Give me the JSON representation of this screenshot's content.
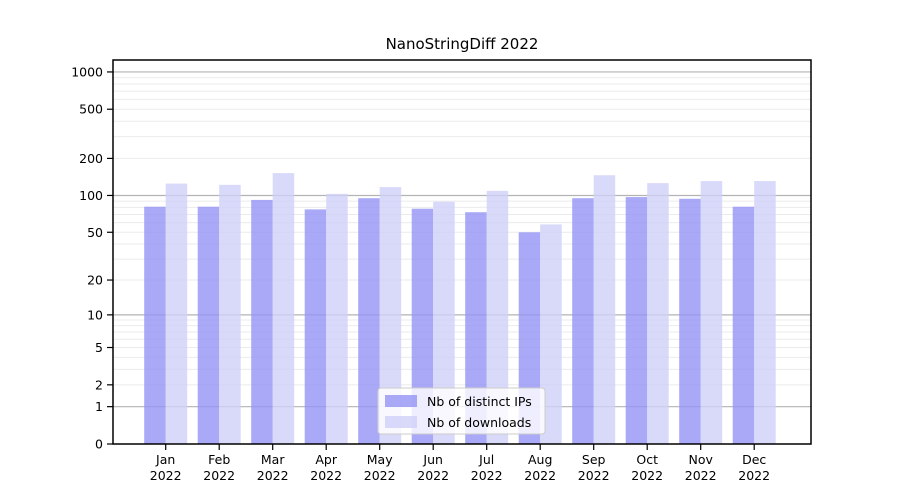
{
  "title": "NanoStringDiff 2022",
  "chart_data": {
    "type": "bar",
    "title": "NanoStringDiff 2022",
    "categories": [
      "Jan",
      "Feb",
      "Mar",
      "Apr",
      "May",
      "Jun",
      "Jul",
      "Aug",
      "Sep",
      "Oct",
      "Nov",
      "Dec"
    ],
    "category_year": "2022",
    "series": [
      {
        "name": "Nb of distinct IPs",
        "color": "#9494f5",
        "values": [
          81,
          81,
          92,
          77,
          95,
          78,
          73,
          50,
          95,
          97,
          94,
          81
        ]
      },
      {
        "name": "Nb of downloads",
        "color": "#d0d0f9",
        "values": [
          125,
          122,
          152,
          103,
          117,
          89,
          109,
          58,
          146,
          126,
          131,
          131
        ]
      }
    ],
    "bar_alpha": 0.8,
    "yscale": "log10(value+1)",
    "yticks": [
      0,
      1,
      2,
      5,
      10,
      20,
      50,
      100,
      200,
      500,
      1000
    ],
    "ylim": [
      0,
      1250
    ],
    "grid": {
      "major_lines": [
        1,
        10,
        100,
        1000
      ],
      "major_color": "#b3b3b3",
      "minor_color": "#ebebeb"
    },
    "legend": {
      "position": "bottom-center",
      "labels": [
        "Nb of distinct IPs",
        "Nb of downloads"
      ]
    },
    "axis_color": "#000000",
    "background": "#ffffff"
  }
}
